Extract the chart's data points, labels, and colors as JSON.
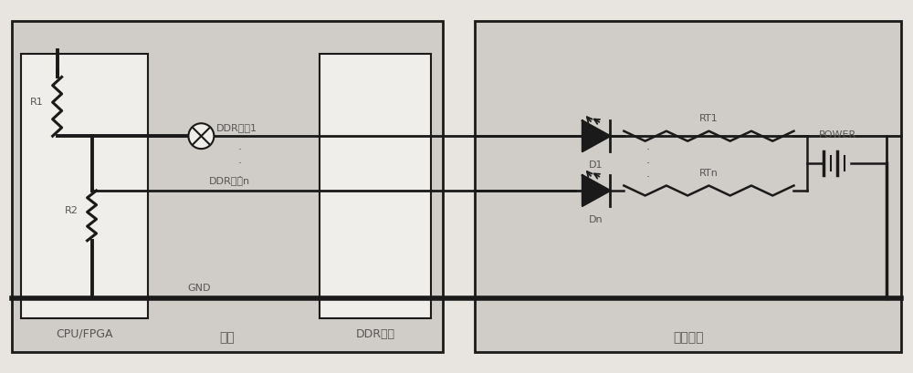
{
  "fig_bg": "#e8e5e0",
  "mainboard_bg": "#d0cdc8",
  "testmod_bg": "#d0cdc8",
  "white_box": "#f0eeea",
  "line_color": "#1a1a1a",
  "text_color": "#555555",
  "mainboard_label": "主板",
  "cpu_label": "CPU/FPGA",
  "ddr_socket_label": "DDR座子",
  "test_module_label": "测试模块",
  "signal1_label": "DDR信号1",
  "signaln_label": "DDR信号n",
  "gnd_label": "GND",
  "power_label": "POWER",
  "d1_label": "D1",
  "dn_label": "Dn",
  "rt1_label": "RT1",
  "rtn_label": "RTn",
  "r1_label": "R1",
  "r2_label": "R2"
}
